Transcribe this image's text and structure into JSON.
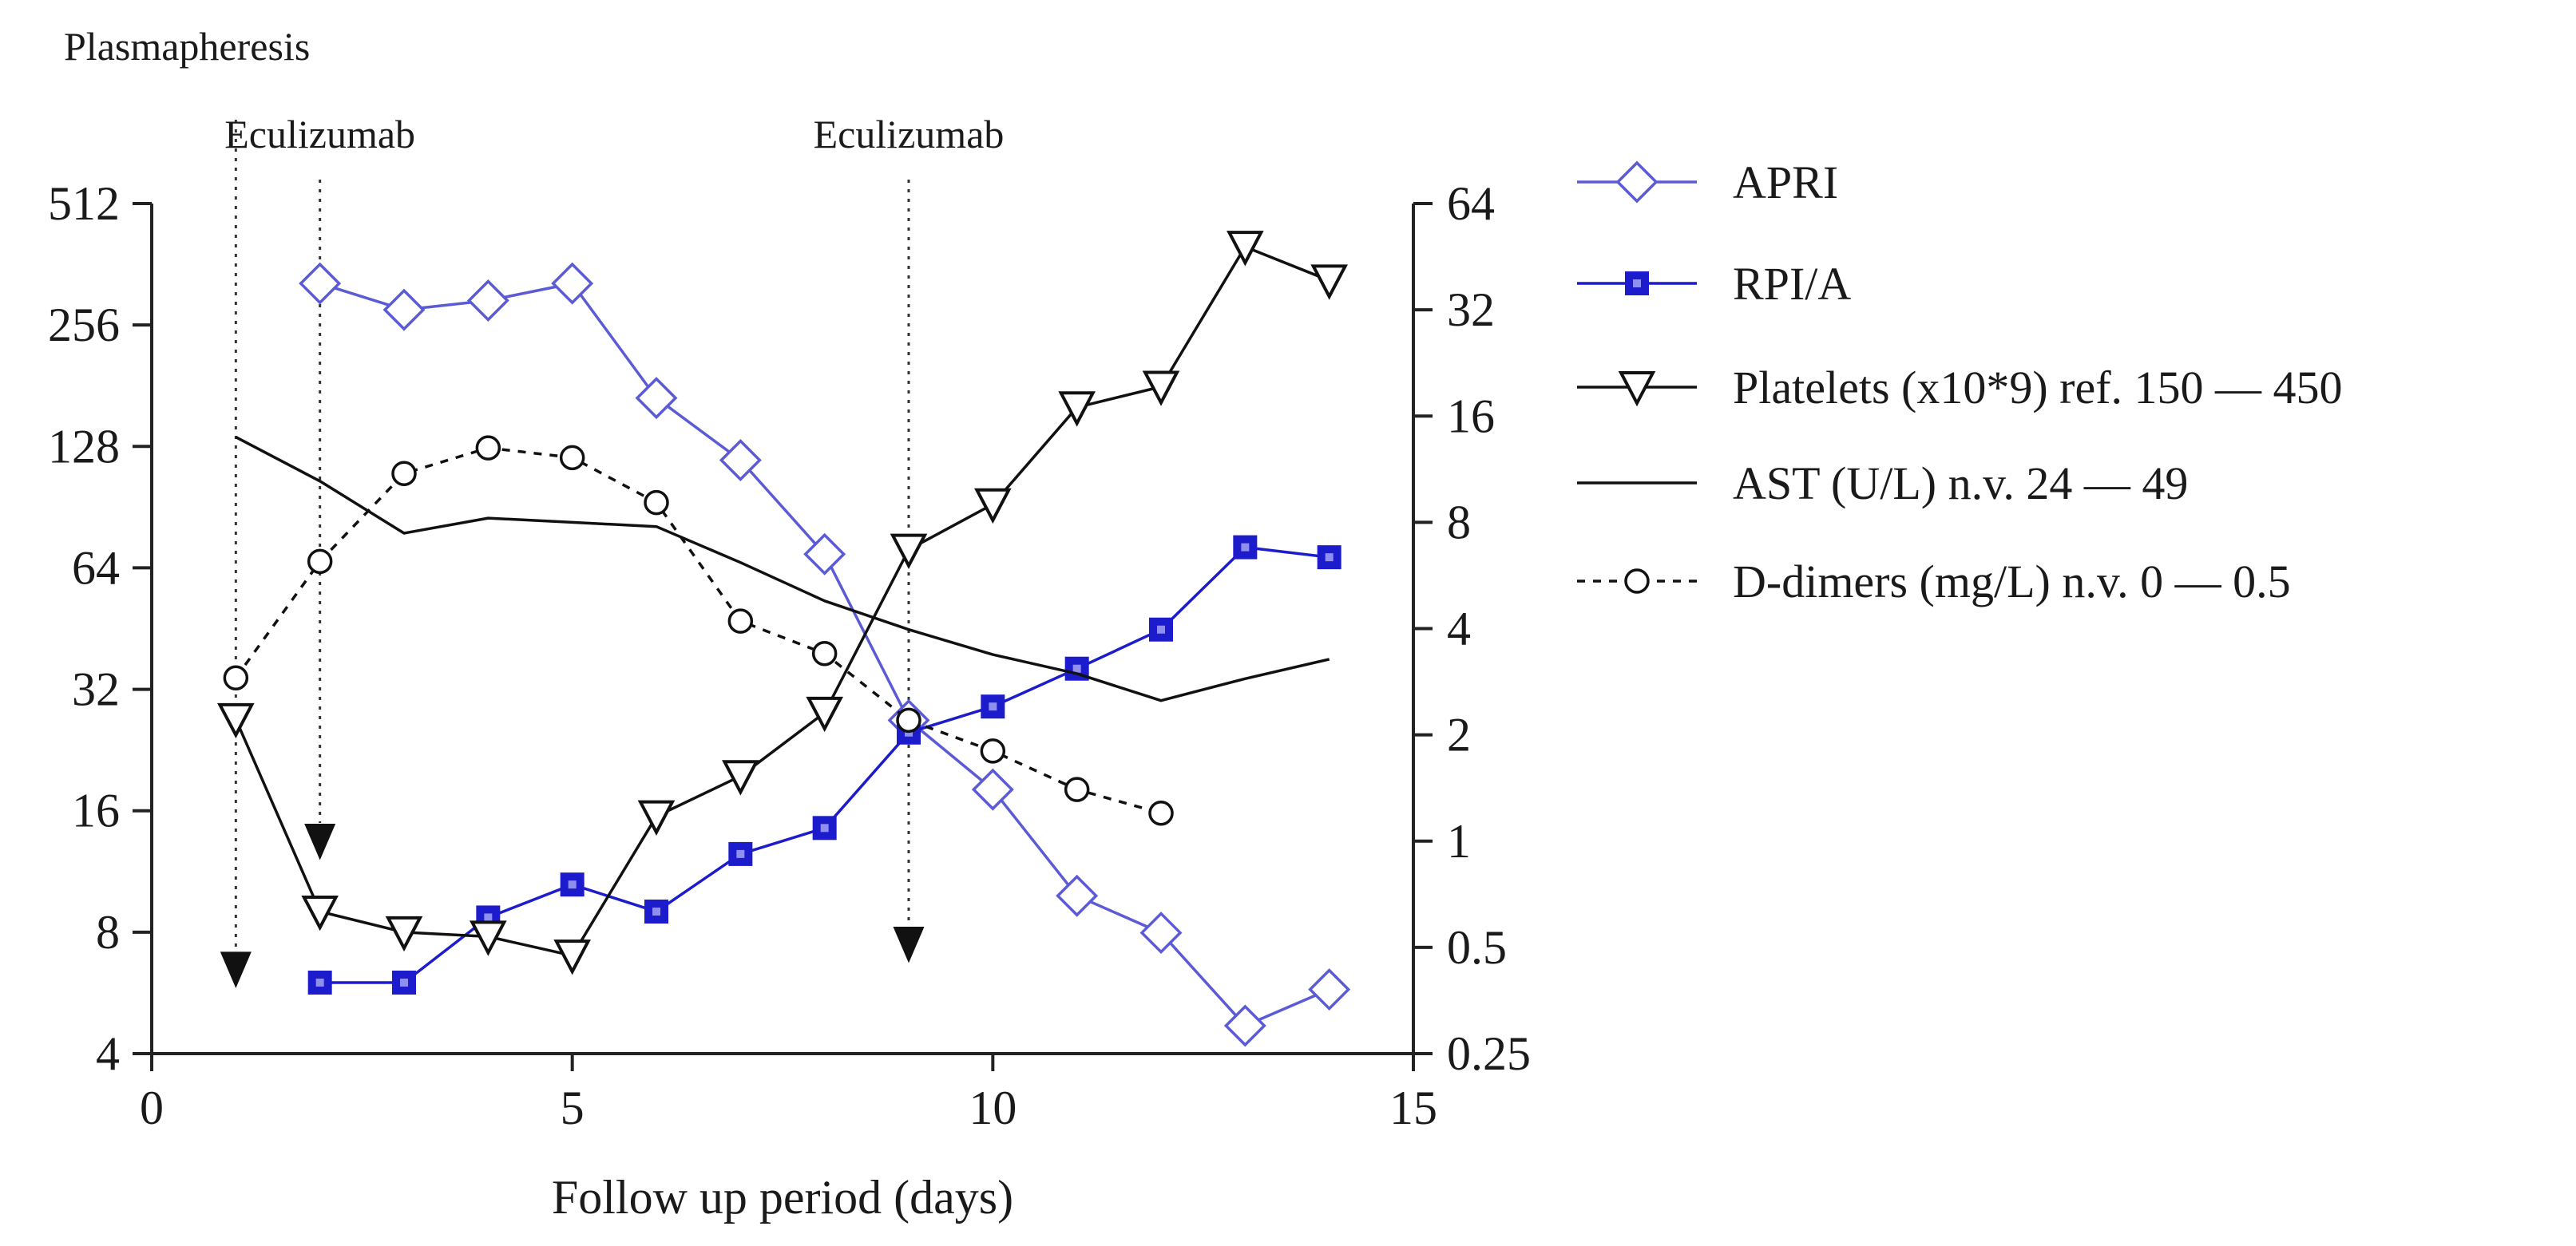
{
  "chart_data": {
    "type": "line",
    "title": "",
    "xlabel": "Follow up period (days)",
    "x_axis": {
      "range": [
        0,
        15
      ],
      "ticks": [
        0,
        5,
        10,
        15
      ],
      "tick_labels": [
        "0",
        "5",
        "10",
        "15"
      ]
    },
    "y_left": {
      "scale": "log2",
      "range": [
        4,
        512
      ],
      "ticks": [
        4,
        8,
        16,
        32,
        64,
        128,
        256,
        512
      ],
      "tick_labels": [
        "4",
        "8",
        "16",
        "32",
        "64",
        "128",
        "256",
        "512"
      ]
    },
    "y_right": {
      "scale": "log2",
      "range": [
        0.25,
        64
      ],
      "ticks": [
        0.25,
        0.5,
        1,
        2,
        4,
        8,
        16,
        32,
        64
      ],
      "tick_labels": [
        "0.25",
        "0.5",
        "1",
        "2",
        "4",
        "8",
        "16",
        "32",
        "64"
      ]
    },
    "annotations": [
      {
        "label": "Plasmapheresis",
        "x": 1
      },
      {
        "label": "Eculizumab",
        "x": 2
      },
      {
        "label": "Eculizumab",
        "x": 9
      }
    ],
    "event_markers": [
      {
        "x": 1,
        "y": 6.5
      },
      {
        "x": 2,
        "y": 13.5
      },
      {
        "x": 9,
        "y": 7.5
      }
    ],
    "series": [
      {
        "name": "APRI",
        "axis": "right",
        "color": "#5b5bd6",
        "marker": "diamond-open",
        "line": "solid",
        "x": [
          2,
          3,
          4,
          5,
          6,
          7,
          8,
          9,
          10,
          11,
          12,
          13,
          14
        ],
        "values": [
          38,
          32,
          34,
          38,
          18,
          12,
          6.5,
          2.2,
          1.4,
          0.7,
          0.55,
          0.3,
          0.38
        ]
      },
      {
        "name": "RPI/A",
        "axis": "left",
        "color": "#1c1ccc",
        "marker": "square",
        "line": "solid",
        "x": [
          2,
          3,
          4,
          5,
          6,
          7,
          8,
          9,
          10,
          11,
          12,
          13,
          14
        ],
        "values": [
          6,
          6,
          8.7,
          10.5,
          9,
          12.5,
          14.5,
          25,
          29,
          36,
          45,
          72,
          68
        ]
      },
      {
        "name": "Platelets (x10*9) ref. 150 — 450",
        "axis": "left",
        "color": "#111111",
        "marker": "triangle-down-open",
        "line": "solid",
        "x": [
          1,
          2,
          3,
          4,
          5,
          6,
          7,
          8,
          9,
          10,
          11,
          12,
          13,
          14
        ],
        "values": [
          27,
          9,
          8,
          7.8,
          7,
          15.5,
          19.5,
          28,
          71,
          92,
          160,
          180,
          400,
          330
        ]
      },
      {
        "name": "AST (U/L) n.v. 24 — 49",
        "axis": "left",
        "color": "#111111",
        "marker": "none",
        "line": "solid",
        "x": [
          1,
          2,
          3,
          4,
          5,
          6,
          7,
          8,
          9,
          10,
          11,
          12,
          13,
          14
        ],
        "values": [
          135,
          105,
          78,
          85,
          83,
          81,
          66,
          53,
          45,
          39,
          35,
          30,
          34,
          38
        ]
      },
      {
        "name": "D-dimers (mg/L) n.v. 0 — 0.5",
        "axis": "right",
        "color": "#111111",
        "marker": "circle-open",
        "line": "dashed",
        "x": [
          1,
          2,
          3,
          4,
          5,
          6,
          7,
          8,
          9,
          10,
          11,
          12
        ],
        "values": [
          2.9,
          6.2,
          11,
          13,
          12.2,
          9.1,
          4.2,
          3.4,
          2.2,
          1.8,
          1.4,
          1.2
        ]
      }
    ]
  }
}
